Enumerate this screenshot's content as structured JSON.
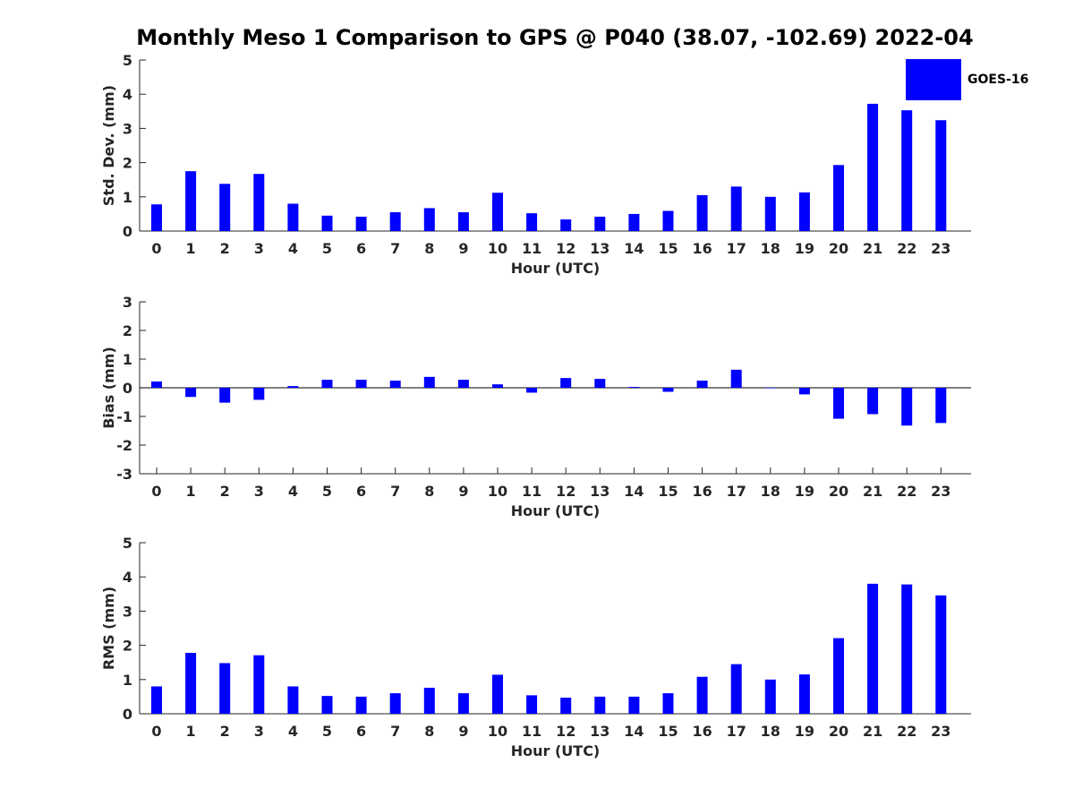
{
  "title": "Monthly Meso 1 Comparison to GPS @ P040 (38.07, -102.69) 2022-04",
  "legend": {
    "label": "GOES-16",
    "color": "#0000ff"
  },
  "chart_data": [
    {
      "type": "bar",
      "categories": [
        "0",
        "1",
        "2",
        "3",
        "4",
        "5",
        "6",
        "7",
        "8",
        "9",
        "10",
        "11",
        "12",
        "13",
        "14",
        "15",
        "16",
        "17",
        "18",
        "19",
        "20",
        "21",
        "22",
        "23"
      ],
      "series": [
        {
          "name": "GOES-16",
          "values": [
            0.78,
            1.75,
            1.38,
            1.67,
            0.8,
            0.45,
            0.42,
            0.55,
            0.67,
            0.55,
            1.12,
            0.52,
            0.34,
            0.42,
            0.5,
            0.59,
            1.05,
            1.3,
            1.0,
            1.13,
            1.93,
            3.72,
            3.53,
            3.24
          ]
        }
      ],
      "xlabel": "Hour (UTC)",
      "ylabel": "Std. Dev. (mm)",
      "ylim": [
        0,
        5
      ],
      "yticks": [
        0,
        1,
        2,
        3,
        4,
        5
      ]
    },
    {
      "type": "bar",
      "categories": [
        "0",
        "1",
        "2",
        "3",
        "4",
        "5",
        "6",
        "7",
        "8",
        "9",
        "10",
        "11",
        "12",
        "13",
        "14",
        "15",
        "16",
        "17",
        "18",
        "19",
        "20",
        "21",
        "22",
        "23"
      ],
      "series": [
        {
          "name": "GOES-16",
          "values": [
            0.22,
            -0.32,
            -0.52,
            -0.42,
            0.06,
            0.28,
            0.28,
            0.25,
            0.38,
            0.28,
            0.12,
            -0.17,
            0.34,
            0.31,
            0.03,
            -0.14,
            0.25,
            0.63,
            -0.01,
            -0.23,
            -1.08,
            -0.92,
            -1.32,
            -1.23
          ]
        }
      ],
      "xlabel": "Hour (UTC)",
      "ylabel": "Bias (mm)",
      "ylim": [
        -3,
        3
      ],
      "yticks": [
        -3,
        -2,
        -1,
        0,
        1,
        2,
        3
      ],
      "zero_line": true
    },
    {
      "type": "bar",
      "categories": [
        "0",
        "1",
        "2",
        "3",
        "4",
        "5",
        "6",
        "7",
        "8",
        "9",
        "10",
        "11",
        "12",
        "13",
        "14",
        "15",
        "16",
        "17",
        "18",
        "19",
        "20",
        "21",
        "22",
        "23"
      ],
      "series": [
        {
          "name": "GOES-16",
          "values": [
            0.8,
            1.78,
            1.48,
            1.71,
            0.8,
            0.52,
            0.5,
            0.6,
            0.76,
            0.6,
            1.14,
            0.54,
            0.47,
            0.5,
            0.5,
            0.6,
            1.08,
            1.45,
            1.0,
            1.15,
            2.21,
            3.8,
            3.78,
            3.46
          ]
        }
      ],
      "xlabel": "Hour (UTC)",
      "ylabel": "RMS (mm)",
      "ylim": [
        0,
        5
      ],
      "yticks": [
        0,
        1,
        2,
        3,
        4,
        5
      ]
    }
  ]
}
